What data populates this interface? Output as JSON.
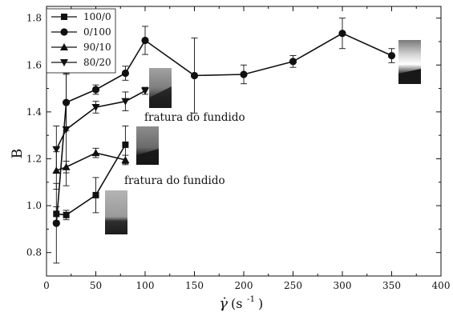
{
  "chart_data": {
    "type": "line",
    "xlabel_symbol": "γ̇",
    "xlabel_unit": "(s",
    "xlabel_exp": "-1",
    "xlabel_close": ")",
    "ylabel": "B",
    "xlim": [
      0,
      400
    ],
    "ylim": [
      0.7,
      1.85
    ],
    "xticks": [
      0,
      50,
      100,
      150,
      200,
      250,
      300,
      350,
      400
    ],
    "yticks": [
      0.8,
      1.0,
      1.2,
      1.4,
      1.6,
      1.8
    ],
    "ytick_labels": [
      "0.8",
      "1.0",
      "1.2",
      "1.4",
      "1.6",
      "1.8"
    ],
    "legend_position": "top-left",
    "grid": false,
    "series": [
      {
        "name": "100/0",
        "marker": "square",
        "x": [
          10,
          20,
          50,
          80
        ],
        "y": [
          0.965,
          0.96,
          1.045,
          1.26
        ],
        "err": [
          0.03,
          0.02,
          0.075,
          0.08
        ]
      },
      {
        "name": "0/100",
        "marker": "circle",
        "x": [
          10,
          20,
          50,
          80,
          100,
          150,
          200,
          250,
          300,
          350
        ],
        "y": [
          0.925,
          1.44,
          1.495,
          1.565,
          1.705,
          1.555,
          1.56,
          1.615,
          1.735,
          1.64
        ],
        "err": [
          0.17,
          0.12,
          0.02,
          0.03,
          0.06,
          0.16,
          0.04,
          0.025,
          0.065,
          0.03
        ]
      },
      {
        "name": "90/10",
        "marker": "triangle-up",
        "x": [
          10,
          20,
          50,
          80
        ],
        "y": [
          1.15,
          1.165,
          1.225,
          1.195
        ],
        "err": [
          0.08,
          0.025,
          0.02,
          0.02
        ]
      },
      {
        "name": "80/20",
        "marker": "triangle-down",
        "x": [
          10,
          20,
          50,
          80,
          100
        ],
        "y": [
          1.24,
          1.325,
          1.42,
          1.445,
          1.49
        ],
        "err": [
          0.1,
          0.24,
          0.025,
          0.04,
          0.015
        ]
      }
    ],
    "annotations": [
      {
        "text": "fratura do fundido",
        "x": 95,
        "y": 1.385
      },
      {
        "text": "fratura do fundido",
        "x": 58,
        "y": 1.085
      }
    ]
  }
}
